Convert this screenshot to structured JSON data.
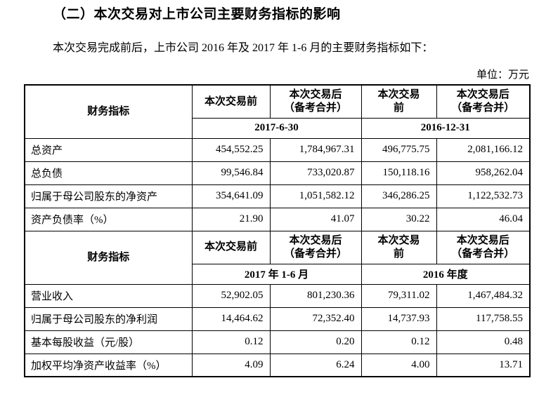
{
  "doc": {
    "title": "（二）本次交易对上市公司主要财务指标的影响",
    "intro": "本次交易完成前后，上市公司 2016 年及 2017 年 1-6 月的主要财务指标如下：",
    "unit_label": "单位：万元"
  },
  "table": {
    "sections": [
      {
        "header": {
          "indicator": "财务指标",
          "col_pre_left": "本次交易前",
          "col_post_left": "本次交易后\n（备考合并）",
          "col_pre_right": "本次交易\n前",
          "col_post_right": "本次交易后\n（备考合并）",
          "period_left": "2017-6-30",
          "period_right": "2016-12-31"
        },
        "rows": [
          {
            "label": "总资产",
            "v1": "454,552.25",
            "v2": "1,784,967.31",
            "v3": "496,775.75",
            "v4": "2,081,166.12"
          },
          {
            "label": "总负债",
            "v1": "99,546.84",
            "v2": "733,020.87",
            "v3": "150,118.16",
            "v4": "958,262.04"
          },
          {
            "label": "归属于母公司股东的净资产",
            "v1": "354,641.09",
            "v2": "1,051,582.12",
            "v3": "346,286.25",
            "v4": "1,122,532.73"
          },
          {
            "label": "资产负债率（%）",
            "v1": "21.90",
            "v2": "41.07",
            "v3": "30.22",
            "v4": "46.04"
          }
        ]
      },
      {
        "header": {
          "indicator": "财务指标",
          "col_pre_left": "本次交易前",
          "col_post_left": "本次交易后\n（备考合并）",
          "col_pre_right": "本次交易\n前",
          "col_post_right": "本次交易后\n（备考合并）",
          "period_left": "2017 年 1-6 月",
          "period_right": "2016 年度"
        },
        "rows": [
          {
            "label": "营业收入",
            "v1": "52,902.05",
            "v2": "801,230.36",
            "v3": "79,311.02",
            "v4": "1,467,484.32"
          },
          {
            "label": "归属于母公司股东的净利润",
            "v1": "14,464.62",
            "v2": "72,352.40",
            "v3": "14,737.93",
            "v4": "117,758.55"
          },
          {
            "label": "基本每股收益（元/股）",
            "v1": "0.12",
            "v2": "0.20",
            "v3": "0.12",
            "v4": "0.48"
          },
          {
            "label": "加权平均净资产收益率（%）",
            "v1": "4.09",
            "v2": "6.24",
            "v3": "4.00",
            "v4": "13.71"
          }
        ]
      }
    ]
  }
}
